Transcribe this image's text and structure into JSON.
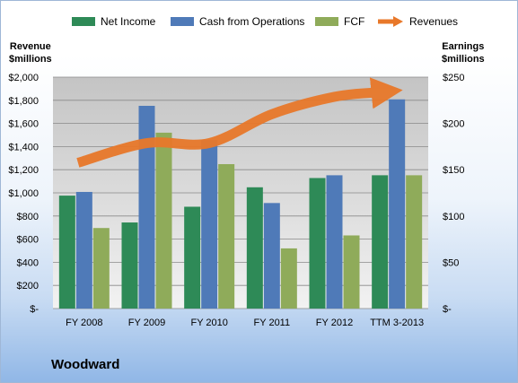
{
  "legend": {
    "items": [
      {
        "label": "Net Income",
        "color": "#2e8a57"
      },
      {
        "label": "Cash from Operations",
        "color": "#4f7ab8"
      },
      {
        "label": "FCF",
        "color": "#8fab5a"
      },
      {
        "label": "Revenues",
        "color": "#e8782a"
      }
    ]
  },
  "axes": {
    "left_title_line1": "Revenue",
    "left_title_line2": "$millions",
    "right_title_line1": "Earnings",
    "right_title_line2": "$millions"
  },
  "company": "Woodward",
  "chart_data": {
    "type": "bar",
    "categories": [
      "FY 2008",
      "FY 2009",
      "FY 2010",
      "FY 2011",
      "FY 2012",
      "TTM 3-2013"
    ],
    "series": [
      {
        "name": "Net Income",
        "axis": "right",
        "color": "#2e8a57",
        "values": [
          122,
          93,
          110,
          131,
          141,
          144
        ]
      },
      {
        "name": "Cash from Operations",
        "axis": "right",
        "color": "#4f7ab8",
        "values": [
          126,
          219,
          182,
          114,
          144,
          226
        ]
      },
      {
        "name": "FCF",
        "axis": "right",
        "color": "#8fab5a",
        "values": [
          87,
          190,
          156,
          65,
          79,
          144
        ]
      },
      {
        "name": "Revenues",
        "axis": "left",
        "type": "line",
        "color": "#e8782a",
        "values": [
          1260,
          1430,
          1430,
          1680,
          1830,
          1870
        ]
      }
    ],
    "left_axis": {
      "ylim": [
        0,
        2000
      ],
      "ticks": [
        0,
        200,
        400,
        600,
        800,
        1000,
        1200,
        1400,
        1600,
        1800,
        2000
      ],
      "tick_labels": [
        "$-",
        "$200",
        "$400",
        "$600",
        "$800",
        "$1,000",
        "$1,200",
        "$1,400",
        "$1,600",
        "$1,800",
        "$2,000"
      ]
    },
    "right_axis": {
      "ylim": [
        0,
        250
      ],
      "ticks": [
        0,
        50,
        100,
        150,
        200,
        250
      ],
      "tick_labels": [
        "$-",
        "$50",
        "$100",
        "$150",
        "$200",
        "$250"
      ]
    },
    "legend_position": "top"
  }
}
